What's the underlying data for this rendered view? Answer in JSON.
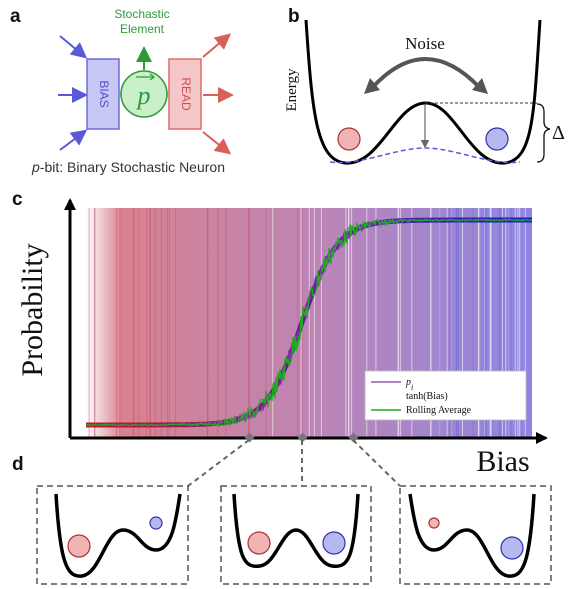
{
  "panels": {
    "a": {
      "letter": "a",
      "stochastic_label_line1": "Stochastic",
      "stochastic_label_line2": "Element",
      "bias_label": "BIAS",
      "read_label": "READ",
      "caption_italic": "p",
      "caption_rest": "-bit: Binary Stochastic Neuron",
      "colors": {
        "bias": "#6b6be0",
        "read": "#e06b6b",
        "element": "#2e9a3a"
      }
    },
    "b": {
      "letter": "b",
      "noise_label": "Noise",
      "energy_label": "Energy",
      "barrier_label": "Δ"
    },
    "c": {
      "letter": "c",
      "ylabel": "Probability",
      "xlabel": "Bias",
      "legend": [
        {
          "label": "p_i",
          "color": "#7a3aa8"
        },
        {
          "label": "tanh(Bias)",
          "color": "#3030c8"
        },
        {
          "label": "Rolling Average",
          "color": "#22aa22"
        }
      ],
      "gradient": {
        "left": "#d77f8f",
        "right": "#8f86e0"
      }
    },
    "d": {
      "letter": "d"
    }
  }
}
